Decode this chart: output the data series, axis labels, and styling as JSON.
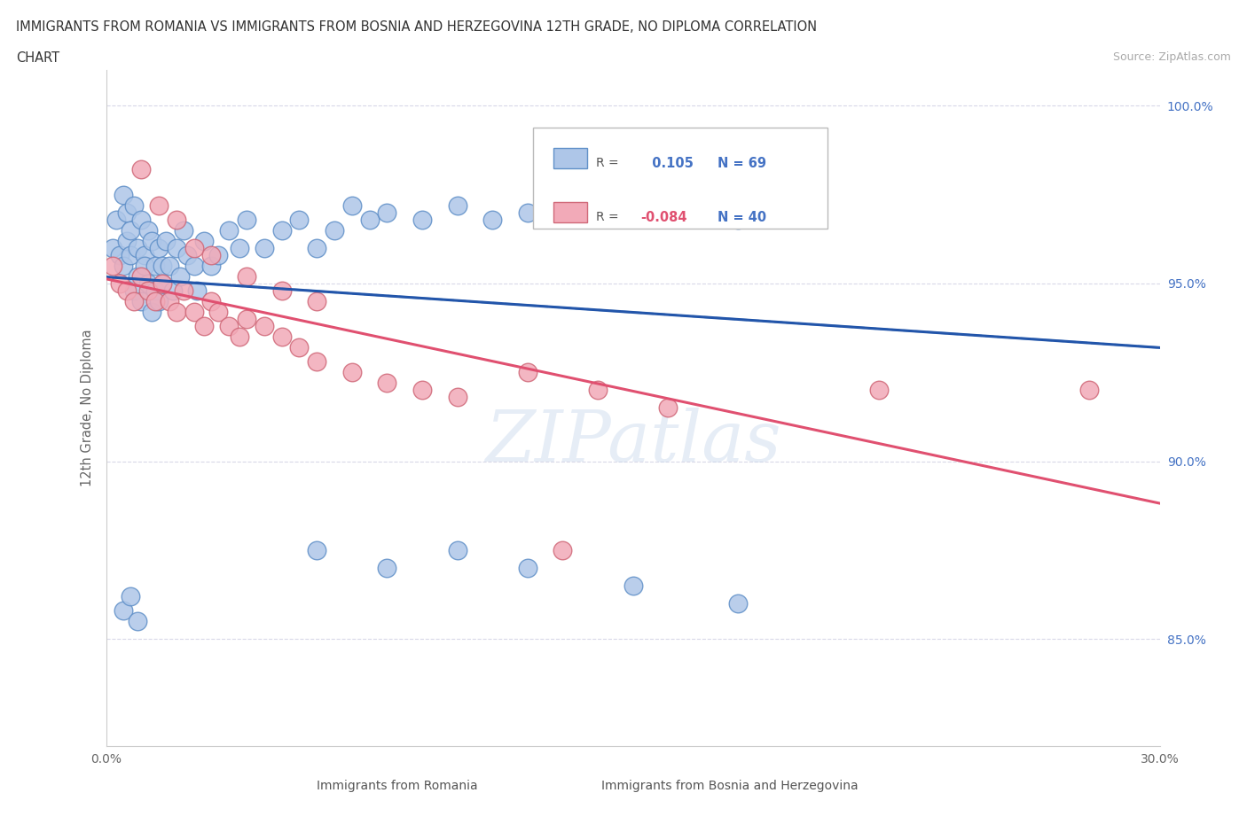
{
  "title_line1": "IMMIGRANTS FROM ROMANIA VS IMMIGRANTS FROM BOSNIA AND HERZEGOVINA 12TH GRADE, NO DIPLOMA CORRELATION",
  "title_line2": "CHART",
  "source": "Source: ZipAtlas.com",
  "ylabel": "12th Grade, No Diploma",
  "xlim": [
    0.0,
    0.3
  ],
  "ylim": [
    0.82,
    1.01
  ],
  "xticks": [
    0.0,
    0.05,
    0.1,
    0.15,
    0.2,
    0.25,
    0.3
  ],
  "xticklabels": [
    "0.0%",
    "",
    "",
    "",
    "",
    "",
    "30.0%"
  ],
  "ytick_positions": [
    0.85,
    0.9,
    0.95,
    1.0
  ],
  "ytick_labels": [
    "85.0%",
    "90.0%",
    "95.0%",
    "100.0%"
  ],
  "romania_color": "#aec6e8",
  "bosnia_color": "#f2aab8",
  "romania_edge": "#6090c8",
  "bosnia_edge": "#d06878",
  "r_romania": 0.105,
  "n_romania": 69,
  "r_bosnia": -0.084,
  "n_bosnia": 40,
  "romania_scatter_x": [
    0.002,
    0.003,
    0.004,
    0.005,
    0.005,
    0.006,
    0.006,
    0.007,
    0.007,
    0.008,
    0.008,
    0.009,
    0.009,
    0.01,
    0.01,
    0.011,
    0.011,
    0.012,
    0.012,
    0.013,
    0.013,
    0.014,
    0.014,
    0.015,
    0.015,
    0.016,
    0.016,
    0.017,
    0.018,
    0.019,
    0.02,
    0.021,
    0.022,
    0.023,
    0.025,
    0.026,
    0.028,
    0.03,
    0.032,
    0.035,
    0.038,
    0.04,
    0.045,
    0.05,
    0.055,
    0.06,
    0.065,
    0.07,
    0.075,
    0.08,
    0.09,
    0.1,
    0.11,
    0.12,
    0.13,
    0.14,
    0.15,
    0.16,
    0.18,
    0.2,
    0.06,
    0.08,
    0.1,
    0.12,
    0.15,
    0.18,
    0.005,
    0.007,
    0.009
  ],
  "romania_scatter_y": [
    0.96,
    0.968,
    0.958,
    0.975,
    0.955,
    0.97,
    0.962,
    0.965,
    0.958,
    0.972,
    0.948,
    0.96,
    0.952,
    0.968,
    0.945,
    0.958,
    0.955,
    0.965,
    0.95,
    0.962,
    0.942,
    0.955,
    0.948,
    0.96,
    0.945,
    0.955,
    0.95,
    0.962,
    0.955,
    0.948,
    0.96,
    0.952,
    0.965,
    0.958,
    0.955,
    0.948,
    0.962,
    0.955,
    0.958,
    0.965,
    0.96,
    0.968,
    0.96,
    0.965,
    0.968,
    0.96,
    0.965,
    0.972,
    0.968,
    0.97,
    0.968,
    0.972,
    0.968,
    0.97,
    0.975,
    0.972,
    0.975,
    0.97,
    0.968,
    0.972,
    0.875,
    0.87,
    0.875,
    0.87,
    0.865,
    0.86,
    0.858,
    0.862,
    0.855
  ],
  "bosnia_scatter_x": [
    0.002,
    0.004,
    0.006,
    0.008,
    0.01,
    0.012,
    0.014,
    0.016,
    0.018,
    0.02,
    0.022,
    0.025,
    0.028,
    0.03,
    0.032,
    0.035,
    0.038,
    0.04,
    0.045,
    0.05,
    0.055,
    0.06,
    0.07,
    0.08,
    0.09,
    0.1,
    0.12,
    0.14,
    0.16,
    0.28,
    0.01,
    0.015,
    0.02,
    0.025,
    0.03,
    0.04,
    0.05,
    0.06,
    0.13,
    0.22
  ],
  "bosnia_scatter_y": [
    0.955,
    0.95,
    0.948,
    0.945,
    0.952,
    0.948,
    0.945,
    0.95,
    0.945,
    0.942,
    0.948,
    0.942,
    0.938,
    0.945,
    0.942,
    0.938,
    0.935,
    0.94,
    0.938,
    0.935,
    0.932,
    0.928,
    0.925,
    0.922,
    0.92,
    0.918,
    0.925,
    0.92,
    0.915,
    0.92,
    0.982,
    0.972,
    0.968,
    0.96,
    0.958,
    0.952,
    0.948,
    0.945,
    0.875,
    0.92
  ]
}
